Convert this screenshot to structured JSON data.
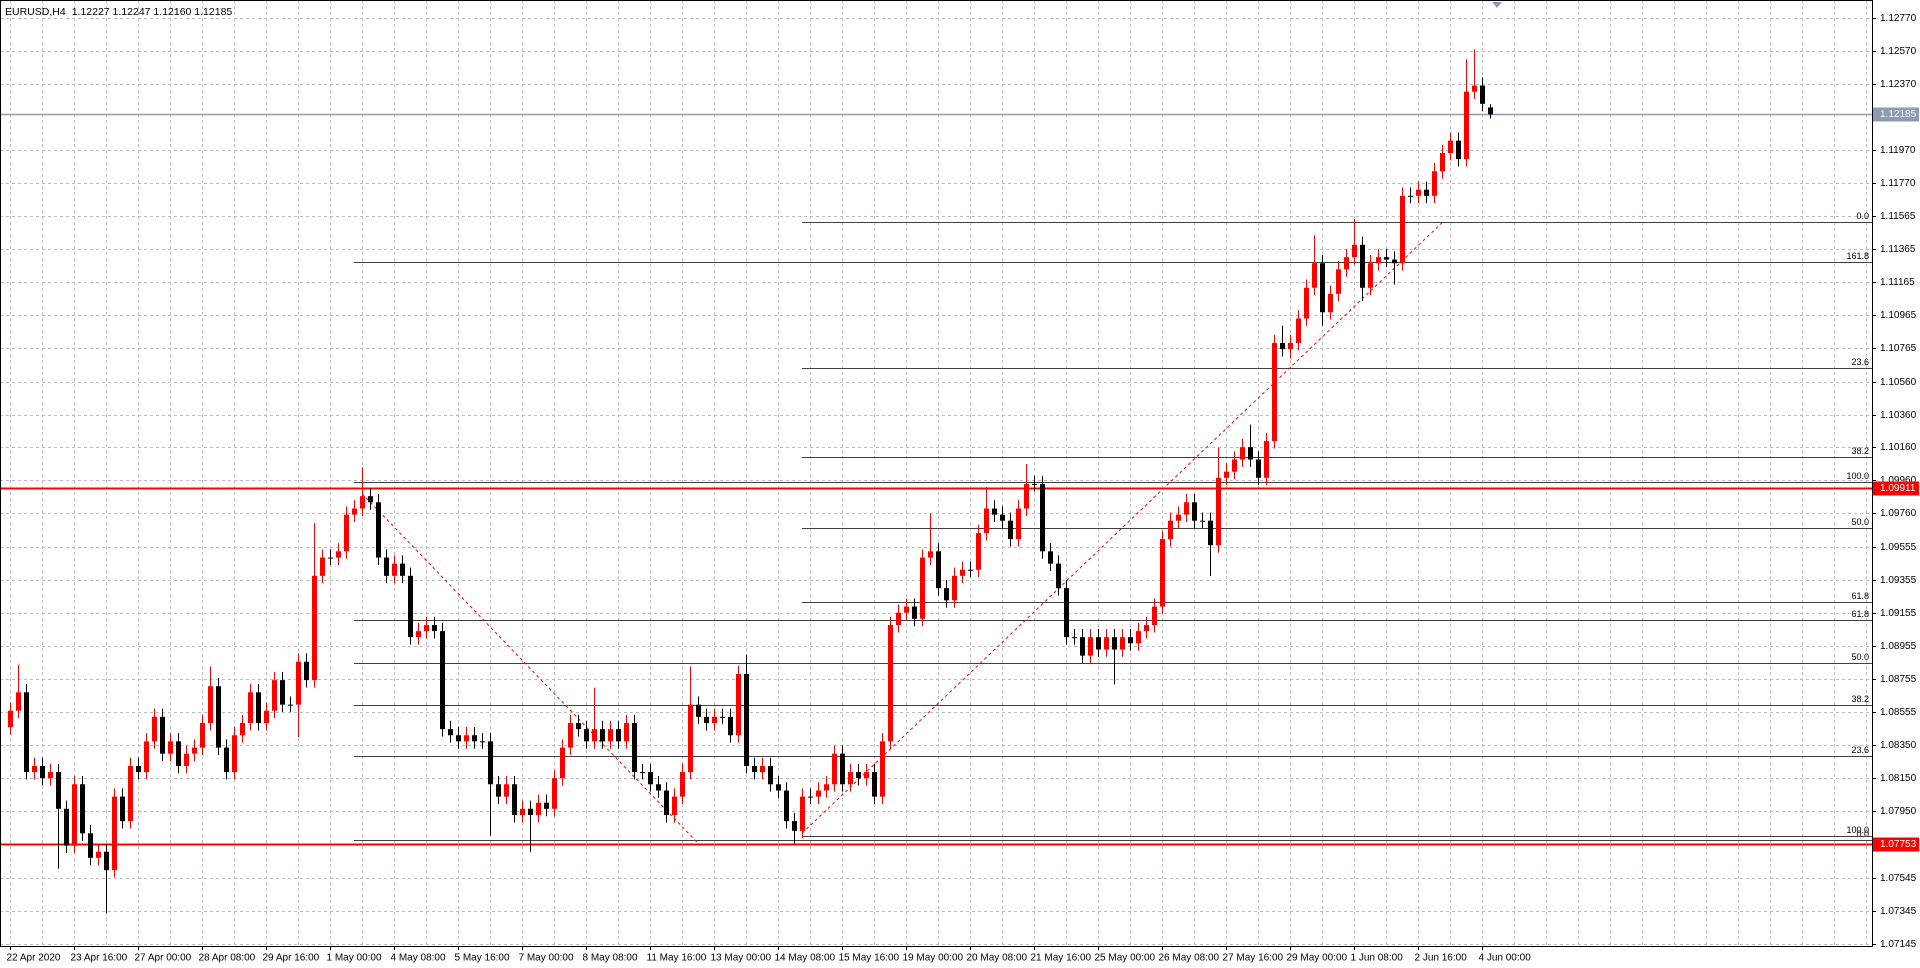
{
  "chart_data": {
    "type": "candlestick",
    "title": "EURUSD,H4",
    "quote": "1.12227 1.12247 1.12160 1.12185",
    "up_color": "#ff0000",
    "down_color": "#000000",
    "grid": true,
    "ylim": [
      1.0713,
      1.1288
    ],
    "yticks": [
      {
        "value": 1.1277,
        "label": "1.12770"
      },
      {
        "value": 1.1257,
        "label": "1.12570"
      },
      {
        "value": 1.1237,
        "label": "1.12370"
      },
      {
        "value": 1.1197,
        "label": "1.11970"
      },
      {
        "value": 1.1177,
        "label": "1.11770"
      },
      1.11565,
      1.11365,
      1.11165,
      1.10965,
      1.10765,
      {
        "value": 1.1056,
        "label": "1.10560"
      },
      {
        "value": 1.1036,
        "label": "1.10360"
      },
      {
        "value": 1.1016,
        "label": "1.10160"
      },
      {
        "value": 1.0996,
        "label": "1.09960"
      },
      {
        "value": 1.0976,
        "label": "1.09760"
      },
      1.09555,
      1.09355,
      1.09155,
      1.08955,
      1.08755,
      1.08555,
      {
        "value": 1.0835,
        "label": "1.08350"
      },
      {
        "value": 1.0815,
        "label": "1.08150"
      },
      {
        "value": 1.0795,
        "label": "1.07950"
      },
      1.07545,
      1.07345,
      1.07145
    ],
    "categories": [
      "22 Apr 2020",
      null,
      null,
      null,
      null,
      null,
      null,
      null,
      "23 Apr 16:00",
      null,
      null,
      null,
      null,
      null,
      null,
      null,
      "27 Apr 00:00",
      null,
      null,
      null,
      null,
      null,
      null,
      null,
      "28 Apr 08:00",
      null,
      null,
      null,
      null,
      null,
      null,
      null,
      "29 Apr 16:00",
      null,
      null,
      null,
      null,
      null,
      null,
      null,
      "1 May 00:00",
      null,
      null,
      null,
      null,
      null,
      null,
      null,
      "4 May 08:00",
      null,
      null,
      null,
      null,
      null,
      null,
      null,
      "5 May 16:00",
      null,
      null,
      null,
      null,
      null,
      null,
      null,
      "7 May 00:00",
      null,
      null,
      null,
      null,
      null,
      null,
      null,
      "8 May 08:00",
      null,
      null,
      null,
      null,
      null,
      null,
      null,
      "11 May 16:00",
      null,
      null,
      null,
      null,
      null,
      null,
      null,
      "13 May 00:00",
      null,
      null,
      null,
      null,
      null,
      null,
      null,
      "14 May 08:00",
      null,
      null,
      null,
      null,
      null,
      null,
      null,
      "15 May 16:00",
      null,
      null,
      null,
      null,
      null,
      null,
      null,
      "19 May 00:00",
      null,
      null,
      null,
      null,
      null,
      null,
      null,
      "20 May 08:00",
      null,
      null,
      null,
      null,
      null,
      null,
      null,
      "21 May 16:00",
      null,
      null,
      null,
      null,
      null,
      null,
      null,
      "25 May 00:00",
      null,
      null,
      null,
      null,
      null,
      null,
      null,
      "26 May 08:00",
      null,
      null,
      null,
      null,
      null,
      null,
      null,
      "27 May 16:00",
      null,
      null,
      null,
      null,
      null,
      null,
      null,
      "29 May 00:00",
      null,
      null,
      null,
      null,
      null,
      null,
      null,
      "1 Jun 08:00",
      null,
      null,
      null,
      null,
      null,
      null,
      null,
      "2 Jun 16:00",
      null,
      null,
      null,
      null,
      null,
      null,
      null,
      "4 Jun 00:00",
      null
    ],
    "open": [
      1.0846,
      1.0856,
      1.08672,
      1.08187,
      1.08224,
      1.0815,
      1.08187,
      1.07964,
      1.0774,
      1.08113,
      1.07815,
      1.07666,
      1.07703,
      1.07591,
      1.08038,
      1.07889,
      1.08224,
      1.08187,
      1.08374,
      1.08523,
      1.08299,
      1.08374,
      1.08224,
      1.08299,
      1.08336,
      1.08485,
      1.08709,
      1.08336,
      1.08187,
      1.08411,
      1.08485,
      1.08672,
      1.08485,
      1.0856,
      1.08746,
      1.08597,
      1.08597,
      1.08858,
      1.08746,
      1.0938,
      1.09491,
      1.09491,
      1.09529,
      1.09752,
      1.09789,
      1.09864,
      1.09827,
      1.09491,
      1.0938,
      1.09454,
      1.0938,
      1.09007,
      1.09044,
      1.09081,
      1.09044,
      1.08448,
      1.08411,
      1.08374,
      1.08411,
      1.08374,
      1.08374,
      1.08113,
      1.08038,
      1.08113,
      1.07926,
      1.07964,
      1.07926,
      1.08001,
      1.07964,
      1.0815,
      1.08336,
      1.08485,
      1.08448,
      1.08374,
      1.08448,
      1.08374,
      1.08448,
      1.08374,
      1.08485,
      1.08187,
      1.08187,
      1.08113,
      1.08075,
      1.07926,
      1.08038,
      1.08187,
      1.08597,
      1.08523,
      1.08485,
      1.08523,
      1.08523,
      1.08411,
      1.08783,
      1.08224,
      1.08187,
      1.08224,
      1.08113,
      1.08075,
      1.07889,
      1.0783,
      1.08038,
      1.08038,
      1.08075,
      1.08113,
      1.08299,
      1.08113,
      1.08187,
      1.0815,
      1.08187,
      1.08038,
      1.08374,
      1.09081,
      1.09156,
      1.09193,
      1.09119,
      1.09491,
      1.09529,
      1.09305,
      1.09231,
      1.0938,
      1.09417,
      1.09417,
      1.0964,
      1.09789,
      1.09752,
      1.09715,
      1.09603,
      1.09789,
      1.09938,
      1.09938,
      1.09529,
      1.09454,
      1.09305,
      1.09007,
      1.09007,
      1.08895,
      1.09007,
      1.08932,
      1.09007,
      1.08932,
      1.09007,
      1.0897,
      1.09044,
      1.09081,
      1.09193,
      1.09603,
      1.09715,
      1.09752,
      1.09827,
      1.09715,
      1.09715,
      1.09566,
      1.09976,
      1.10013,
      1.10087,
      1.10162,
      1.10087,
      1.09976,
      1.10199,
      1.10795,
      1.10758,
      1.10795,
      1.10944,
      1.11131,
      1.1128,
      1.10982,
      1.11094,
      1.11243,
      1.11317,
      1.11392,
      1.11131,
      1.1128,
      1.11317,
      1.11302,
      1.1128,
      1.1169,
      1.1169,
      1.11727,
      1.1169,
      1.11839,
      1.1195,
      1.12025,
      1.11913,
      1.12323,
      1.1236,
      1.12227
    ],
    "high": [
      1.0861,
      1.0884,
      1.08722,
      1.08274,
      1.08274,
      1.08237,
      1.08237,
      1.08014,
      1.08163,
      1.08163,
      1.07865,
      1.07753,
      1.07753,
      1.08088,
      1.08088,
      1.08274,
      1.08274,
      1.08424,
      1.08573,
      1.08573,
      1.08424,
      1.08424,
      1.08349,
      1.08386,
      1.08535,
      1.0883,
      1.08759,
      1.08386,
      1.08461,
      1.08535,
      1.08722,
      1.08722,
      1.0861,
      1.08796,
      1.08796,
      1.08647,
      1.08908,
      1.08908,
      1.097,
      1.09541,
      1.09541,
      1.09579,
      1.09802,
      1.09839,
      1.1004,
      1.09914,
      1.09877,
      1.09541,
      1.09504,
      1.09504,
      1.0943,
      1.09094,
      1.09131,
      1.09131,
      1.09094,
      1.08498,
      1.08461,
      1.08461,
      1.08461,
      1.08424,
      1.08424,
      1.08163,
      1.08163,
      1.08163,
      1.08014,
      1.08014,
      1.08051,
      1.08051,
      1.082,
      1.08386,
      1.08535,
      1.08535,
      1.08498,
      1.087,
      1.08498,
      1.08498,
      1.08498,
      1.08535,
      1.08535,
      1.08237,
      1.08237,
      1.08163,
      1.08125,
      1.08088,
      1.08237,
      1.0883,
      1.08647,
      1.08573,
      1.08573,
      1.08573,
      1.08573,
      1.08833,
      1.089,
      1.08274,
      1.08274,
      1.08274,
      1.08163,
      1.08125,
      1.07939,
      1.08088,
      1.08088,
      1.08125,
      1.08163,
      1.08349,
      1.08349,
      1.08237,
      1.08237,
      1.08237,
      1.08237,
      1.08424,
      1.09131,
      1.09206,
      1.09243,
      1.09243,
      1.09541,
      1.0976,
      1.09579,
      1.09355,
      1.0943,
      1.09467,
      1.09467,
      1.0969,
      1.0992,
      1.09839,
      1.09802,
      1.09765,
      1.09839,
      1.1006,
      1.09988,
      1.09988,
      1.09579,
      1.09504,
      1.09355,
      1.09057,
      1.09057,
      1.09057,
      1.09057,
      1.09057,
      1.09057,
      1.09057,
      1.09057,
      1.09094,
      1.09131,
      1.09243,
      1.09653,
      1.09765,
      1.09802,
      1.09877,
      1.09877,
      1.09765,
      1.09765,
      1.1016,
      1.10063,
      1.10137,
      1.10212,
      1.103,
      1.10137,
      1.10249,
      1.10845,
      1.109,
      1.10845,
      1.10994,
      1.11181,
      1.1145,
      1.1133,
      1.11144,
      1.11293,
      1.11367,
      1.1155,
      1.11442,
      1.1133,
      1.11367,
      1.11367,
      1.11352,
      1.1174,
      1.1174,
      1.11777,
      1.11777,
      1.11889,
      1.12,
      1.12075,
      1.12075,
      1.1252,
      1.1258,
      1.1241,
      1.12247
    ],
    "low": [
      1.08415,
      1.08515,
      1.08142,
      1.08142,
      1.08105,
      1.08105,
      1.076,
      1.07695,
      1.07695,
      1.0777,
      1.07621,
      1.07621,
      1.0733,
      1.07546,
      1.07844,
      1.07844,
      1.08142,
      1.08142,
      1.08329,
      1.08254,
      1.08254,
      1.08179,
      1.08179,
      1.08254,
      1.08291,
      1.0844,
      1.08291,
      1.08142,
      1.08142,
      1.08366,
      1.0844,
      1.0844,
      1.0844,
      1.08515,
      1.08552,
      1.08552,
      1.084,
      1.08701,
      1.08701,
      1.09335,
      1.09446,
      1.09446,
      1.09484,
      1.09707,
      1.09744,
      1.09782,
      1.09446,
      1.09335,
      1.09335,
      1.09335,
      1.08962,
      1.08962,
      1.08999,
      1.08999,
      1.08403,
      1.08366,
      1.08329,
      1.08329,
      1.08329,
      1.08329,
      1.078,
      1.07993,
      1.07993,
      1.07881,
      1.07881,
      1.077,
      1.07881,
      1.07919,
      1.07919,
      1.08105,
      1.08291,
      1.08403,
      1.08329,
      1.08329,
      1.08329,
      1.08329,
      1.08329,
      1.08329,
      1.08142,
      1.08142,
      1.08068,
      1.0803,
      1.07881,
      1.07881,
      1.07993,
      1.08142,
      1.08478,
      1.0844,
      1.0844,
      1.08478,
      1.08366,
      1.08366,
      1.08179,
      1.08142,
      1.08142,
      1.08068,
      1.0803,
      1.07844,
      1.07753,
      1.07785,
      1.07993,
      1.07993,
      1.0803,
      1.08068,
      1.08068,
      1.08068,
      1.08105,
      1.08105,
      1.07993,
      1.07993,
      1.08329,
      1.09036,
      1.09111,
      1.09074,
      1.09074,
      1.09446,
      1.0926,
      1.09186,
      1.09186,
      1.09335,
      1.09372,
      1.09372,
      1.09595,
      1.09707,
      1.0967,
      1.09558,
      1.09558,
      1.09744,
      1.09893,
      1.09484,
      1.09409,
      1.0926,
      1.08962,
      1.08962,
      1.0885,
      1.0885,
      1.08887,
      1.08887,
      1.0872,
      1.08887,
      1.08925,
      1.08925,
      1.08999,
      1.09036,
      1.09148,
      1.09558,
      1.0967,
      1.09707,
      1.0967,
      1.0967,
      1.0938,
      1.09521,
      1.09931,
      1.09968,
      1.10042,
      1.10042,
      1.09931,
      1.09931,
      1.10154,
      1.10713,
      1.107,
      1.1075,
      1.10899,
      1.11086,
      1.109,
      1.10937,
      1.11049,
      1.11198,
      1.11272,
      1.1105,
      1.11086,
      1.11235,
      1.11257,
      1.1115,
      1.11235,
      1.11645,
      1.11645,
      1.11645,
      1.11645,
      1.11794,
      1.11905,
      1.11868,
      1.11868,
      1.12278,
      1.12204,
      1.1216
    ],
    "close": [
      1.0856,
      1.08672,
      1.08187,
      1.08224,
      1.0815,
      1.08187,
      1.07964,
      1.0774,
      1.08113,
      1.07815,
      1.07666,
      1.07703,
      1.07591,
      1.08038,
      1.07889,
      1.08224,
      1.08187,
      1.08374,
      1.08523,
      1.08299,
      1.08374,
      1.08224,
      1.08299,
      1.08336,
      1.08485,
      1.08709,
      1.08336,
      1.08187,
      1.08411,
      1.08485,
      1.08672,
      1.08485,
      1.0856,
      1.08746,
      1.08597,
      1.08597,
      1.08858,
      1.08746,
      1.0938,
      1.09491,
      1.09491,
      1.09529,
      1.09752,
      1.09789,
      1.09864,
      1.09827,
      1.09491,
      1.0938,
      1.09454,
      1.0938,
      1.09007,
      1.09044,
      1.09081,
      1.09044,
      1.08448,
      1.08411,
      1.08374,
      1.08411,
      1.08374,
      1.08374,
      1.08113,
      1.08038,
      1.08113,
      1.07926,
      1.07964,
      1.07926,
      1.08001,
      1.07964,
      1.0815,
      1.08336,
      1.08485,
      1.08448,
      1.08374,
      1.08448,
      1.08374,
      1.08448,
      1.08374,
      1.08485,
      1.08187,
      1.08187,
      1.08113,
      1.08075,
      1.07926,
      1.08038,
      1.08187,
      1.08597,
      1.08523,
      1.08485,
      1.08523,
      1.08523,
      1.08411,
      1.08783,
      1.08224,
      1.08187,
      1.08224,
      1.08113,
      1.08075,
      1.07889,
      1.0783,
      1.08038,
      1.08038,
      1.08075,
      1.08113,
      1.08299,
      1.08113,
      1.08187,
      1.0815,
      1.08187,
      1.08038,
      1.08374,
      1.09081,
      1.09156,
      1.09193,
      1.09119,
      1.09491,
      1.09529,
      1.09305,
      1.09231,
      1.0938,
      1.09417,
      1.09417,
      1.0964,
      1.09789,
      1.09752,
      1.09715,
      1.09603,
      1.09789,
      1.09938,
      1.09938,
      1.09529,
      1.09454,
      1.09305,
      1.09007,
      1.09007,
      1.08895,
      1.09007,
      1.08932,
      1.09007,
      1.08932,
      1.09007,
      1.0897,
      1.09044,
      1.09081,
      1.09193,
      1.09603,
      1.09715,
      1.09752,
      1.09827,
      1.09715,
      1.09715,
      1.09566,
      1.09976,
      1.10013,
      1.10087,
      1.10162,
      1.10087,
      1.09976,
      1.10199,
      1.10795,
      1.10758,
      1.10795,
      1.10944,
      1.11131,
      1.1128,
      1.10982,
      1.11094,
      1.11243,
      1.11317,
      1.11392,
      1.11131,
      1.1128,
      1.11317,
      1.11302,
      1.1128,
      1.1169,
      1.1169,
      1.11727,
      1.1169,
      1.11839,
      1.1195,
      1.12025,
      1.11913,
      1.12323,
      1.1236,
      1.12249,
      1.12185
    ],
    "hlines": [
      {
        "value": 1.12185,
        "color": "#8c9bb3"
      },
      {
        "value": 1.09911,
        "color": "#ff0000"
      },
      {
        "value": 1.07753,
        "color": "#ff0000"
      }
    ],
    "fibonacci": [
      {
        "color": "#404040",
        "trend_color": "#ff0000",
        "start_index": 43,
        "from": {
          "index": 44,
          "value": 1.0988
        },
        "to": {
          "index": 86,
          "value": 1.07755
        },
        "levels": [
          {
            "label": "161.8",
            "value": 1.11287
          },
          {
            "label": "100.0",
            "value": 1.09953
          },
          {
            "label": "61.8",
            "value": 1.09111
          },
          {
            "label": "50.0",
            "value": 1.0885
          },
          {
            "label": "38.2",
            "value": 1.08597
          },
          {
            "label": "23.6",
            "value": 1.08284
          },
          {
            "label": "0.0",
            "value": 1.07777
          }
        ]
      },
      {
        "color": "#404040",
        "trend_color": "#ff0000",
        "start_index": 99,
        "from": {
          "index": 99,
          "value": 1.07815
        },
        "to": {
          "index": 179,
          "value": 1.11526
        },
        "levels": [
          {
            "label": "0.0",
            "value": 1.11533
          },
          {
            "label": "23.6",
            "value": 1.10646
          },
          {
            "label": "38.2",
            "value": 1.10102
          },
          {
            "label": "50.0",
            "value": 1.0967
          },
          {
            "label": "61.8",
            "value": 1.09223
          },
          {
            "label": "100.0",
            "value": 1.07799
          }
        ]
      }
    ]
  }
}
